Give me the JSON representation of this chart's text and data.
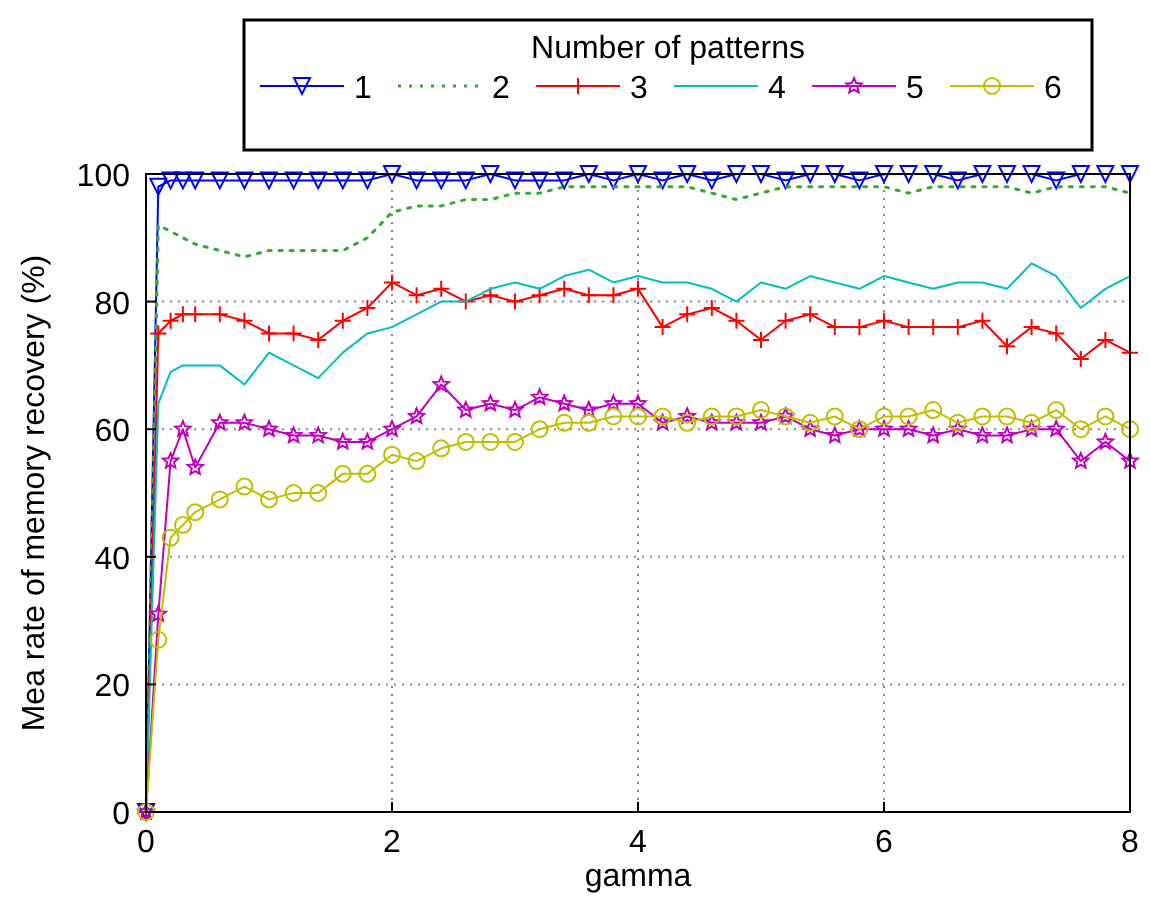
{
  "chart_data": {
    "type": "line",
    "legend_title": "Number of patterns",
    "xlabel": "gamma",
    "ylabel": "Mea rate of memory recovery (%)",
    "x": [
      0,
      0.1,
      0.2,
      0.3,
      0.4,
      0.6,
      0.8,
      1.0,
      1.2,
      1.4,
      1.6,
      1.8,
      2.0,
      2.2,
      2.4,
      2.6,
      2.8,
      3.0,
      3.2,
      3.4,
      3.6,
      3.8,
      4.0,
      4.2,
      4.4,
      4.6,
      4.8,
      5.0,
      5.2,
      5.4,
      5.6,
      5.8,
      6.0,
      6.2,
      6.4,
      6.6,
      6.8,
      7.0,
      7.2,
      7.4,
      7.6,
      7.8,
      8.0
    ],
    "series": [
      {
        "name": "1",
        "color": "#0000ff",
        "marker": "triangle",
        "line_style": "solid",
        "values": [
          0,
          98,
          99,
          99,
          99,
          99,
          99,
          99,
          99,
          99,
          99,
          99,
          100,
          99,
          99,
          99,
          100,
          99,
          99,
          99,
          100,
          99,
          100,
          99,
          100,
          99,
          100,
          100,
          99,
          100,
          100,
          99,
          100,
          100,
          100,
          99,
          100,
          100,
          100,
          99,
          100,
          100,
          100
        ]
      },
      {
        "name": "2",
        "color": "#33aa33",
        "marker": "none",
        "line_style": "dotted",
        "values": [
          0,
          92,
          91,
          90,
          89,
          88,
          87,
          88,
          88,
          88,
          88,
          90,
          94,
          95,
          95,
          96,
          96,
          97,
          97,
          98,
          98,
          98,
          98,
          98,
          98,
          97,
          96,
          97,
          98,
          98,
          98,
          98,
          98,
          97,
          98,
          98,
          98,
          98,
          97,
          98,
          98,
          98,
          97
        ]
      },
      {
        "name": "3",
        "color": "#ff0000",
        "marker": "cross",
        "line_style": "solid",
        "values": [
          0,
          75,
          77,
          78,
          78,
          78,
          77,
          75,
          75,
          74,
          77,
          79,
          83,
          81,
          82,
          80,
          81,
          80,
          81,
          82,
          81,
          81,
          82,
          76,
          78,
          79,
          77,
          74,
          77,
          78,
          76,
          76,
          77,
          76,
          76,
          76,
          77,
          73,
          76,
          75,
          71,
          74,
          72
        ]
      },
      {
        "name": "4",
        "color": "#00bfbf",
        "marker": "none",
        "line_style": "solid",
        "values": [
          0,
          64,
          69,
          70,
          70,
          70,
          67,
          72,
          70,
          68,
          72,
          75,
          76,
          78,
          80,
          80,
          82,
          83,
          82,
          84,
          85,
          83,
          84,
          83,
          83,
          82,
          80,
          83,
          82,
          84,
          83,
          82,
          84,
          83,
          82,
          83,
          83,
          82,
          86,
          84,
          79,
          82,
          84
        ]
      },
      {
        "name": "5",
        "color": "#bf00bf",
        "marker": "star",
        "line_style": "solid",
        "values": [
          0,
          31,
          55,
          60,
          54,
          61,
          61,
          60,
          59,
          59,
          58,
          58,
          60,
          62,
          67,
          63,
          64,
          63,
          65,
          64,
          63,
          64,
          64,
          61,
          62,
          61,
          61,
          61,
          62,
          60,
          59,
          60,
          60,
          60,
          59,
          60,
          59,
          59,
          60,
          60,
          55,
          58,
          55
        ]
      },
      {
        "name": "6",
        "color": "#bfbf00",
        "marker": "circle",
        "line_style": "solid",
        "values": [
          0,
          27,
          43,
          45,
          47,
          49,
          51,
          49,
          50,
          50,
          53,
          53,
          56,
          55,
          57,
          58,
          58,
          58,
          60,
          61,
          61,
          62,
          62,
          62,
          61,
          62,
          62,
          63,
          62,
          61,
          62,
          60,
          62,
          62,
          63,
          61,
          62,
          62,
          61,
          63,
          60,
          62,
          60
        ]
      }
    ],
    "xlim": [
      0,
      8
    ],
    "xticks": [
      0,
      2,
      4,
      6,
      8
    ],
    "ylim": [
      0,
      100
    ],
    "yticks": [
      0,
      20,
      40,
      60,
      80,
      100
    ],
    "grid": true,
    "legend": "top"
  }
}
